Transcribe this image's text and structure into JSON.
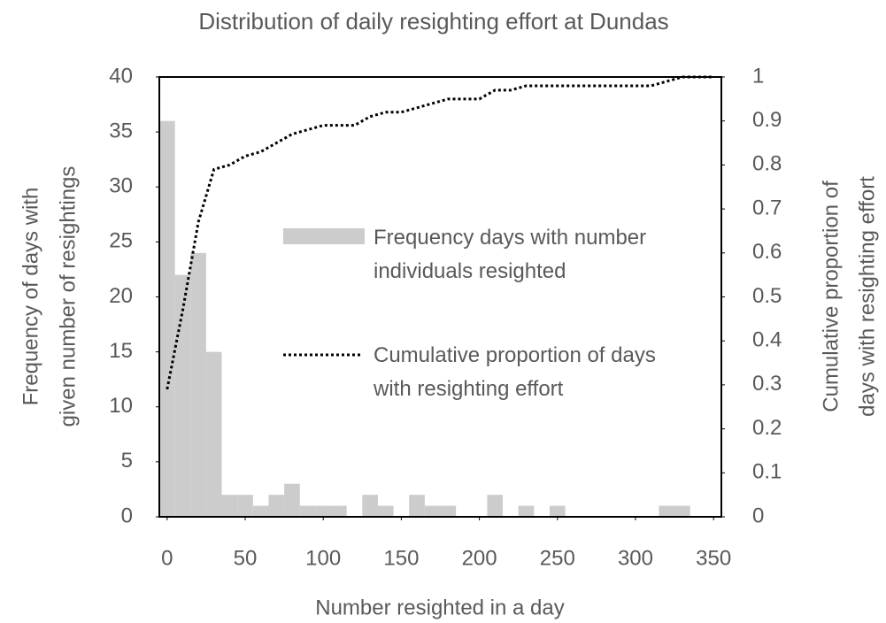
{
  "chart_data": {
    "type": "histogram",
    "title": "Distribution of daily resighting effort at Dundas",
    "xlabel": "Number resighted in a day",
    "ylabel": [
      "Frequency of days with",
      "given number of resightings"
    ],
    "y2label": [
      "Cumulative proportion of",
      "days with resighting effort"
    ],
    "bins": [
      -5,
      5,
      15,
      25,
      35,
      45,
      55,
      65,
      75,
      85,
      95,
      105,
      115,
      125,
      135,
      145,
      155,
      165,
      175,
      185,
      195,
      205,
      215,
      225,
      235,
      245,
      255,
      265,
      275,
      285,
      295,
      305,
      315,
      325,
      335,
      345,
      355
    ],
    "series": [
      {
        "name": "Frequency days with number individuals resighted",
        "color": "#cccccc",
        "values": [
          36,
          22,
          24,
          15,
          2,
          2,
          1,
          2,
          3,
          1,
          1,
          1,
          0,
          2,
          1,
          0,
          2,
          1,
          1,
          0,
          0,
          2,
          0,
          1,
          0,
          1,
          0,
          0,
          0,
          0,
          0,
          0,
          1,
          1,
          0,
          0
        ]
      },
      {
        "name": "Cumulative proportion of days with resighting effort",
        "type": "line",
        "color": "#000000",
        "axis": "y2",
        "x": [
          0,
          10,
          20,
          30,
          40,
          50,
          60,
          70,
          80,
          90,
          100,
          110,
          120,
          130,
          140,
          150,
          160,
          170,
          180,
          190,
          200,
          210,
          220,
          230,
          240,
          250,
          260,
          270,
          280,
          290,
          300,
          310,
          320,
          330,
          340,
          350
        ],
        "values": [
          0.29,
          0.47,
          0.67,
          0.79,
          0.8,
          0.82,
          0.83,
          0.85,
          0.87,
          0.88,
          0.89,
          0.89,
          0.89,
          0.91,
          0.92,
          0.92,
          0.93,
          0.94,
          0.95,
          0.95,
          0.95,
          0.97,
          0.97,
          0.98,
          0.98,
          0.98,
          0.98,
          0.98,
          0.98,
          0.98,
          0.98,
          0.98,
          0.99,
          1,
          1,
          1
        ]
      }
    ],
    "xlim": [
      -5,
      355
    ],
    "xticks": [
      0,
      50,
      100,
      150,
      200,
      250,
      300,
      350
    ],
    "ylim": [
      0,
      40
    ],
    "yticks": [
      0,
      5,
      10,
      15,
      20,
      25,
      30,
      35,
      40
    ],
    "y2lim": [
      0,
      1
    ],
    "y2ticks": [
      0,
      0.1,
      0.2,
      0.3,
      0.4,
      0.5,
      0.6,
      0.7,
      0.8,
      0.9,
      1
    ]
  }
}
